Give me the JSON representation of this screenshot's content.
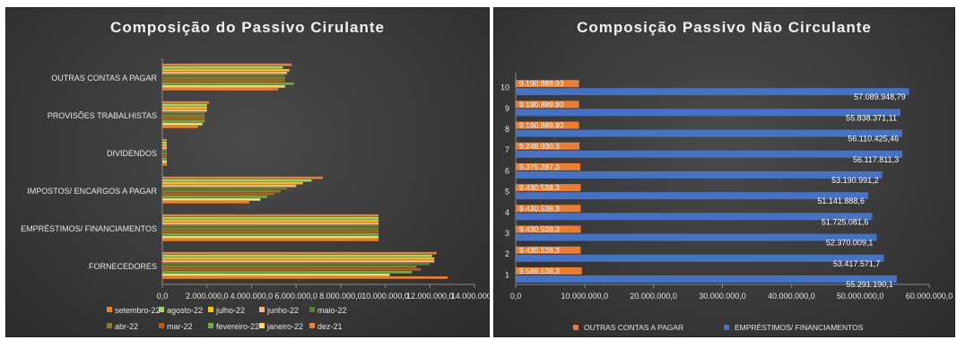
{
  "chart_data": [
    {
      "type": "bar",
      "orientation": "horizontal",
      "title": "Composição do Passivo Cirulante",
      "categories": [
        "OUTRAS CONTAS A PAGAR",
        "PROVISÕES TRABALHISTAS",
        "DIVIDENDOS",
        "IMPOSTOS/ ENCARGOS A PAGAR",
        "EMPRÉSTIMOS/ FINANCIAMENTOS",
        "FORNECEDORES"
      ],
      "xlim": [
        0,
        14000000
      ],
      "xticks": [
        "0,0",
        "2.000.000,0",
        "4.000.000,0",
        "6.000.000,0",
        "8.000.000,0",
        "10.000.000,0",
        "12.000.000,0",
        "14.000.000,0"
      ],
      "legend_position": "bottom",
      "grid": false,
      "series": [
        {
          "name": "setembro-22",
          "color": "#ED7D31",
          "values": [
            5800000,
            2100000,
            200000,
            7200000,
            9700000,
            12300000
          ]
        },
        {
          "name": "agosto-22",
          "color": "#A5D46A",
          "values": [
            5400000,
            2000000,
            200000,
            6700000,
            9700000,
            12100000
          ]
        },
        {
          "name": "julho-22",
          "color": "#FFC000",
          "values": [
            5700000,
            2000000,
            200000,
            6300000,
            9700000,
            12200000
          ]
        },
        {
          "name": "junho-22",
          "color": "#F4B183",
          "values": [
            5600000,
            2000000,
            200000,
            6000000,
            9700000,
            12200000
          ]
        },
        {
          "name": "maio-22",
          "color": "#548235",
          "values": [
            5500000,
            1900000,
            200000,
            5600000,
            9700000,
            12000000
          ]
        },
        {
          "name": "abr-22",
          "color": "#8C7A30",
          "values": [
            5500000,
            1900000,
            200000,
            5300000,
            9700000,
            11400000
          ]
        },
        {
          "name": "mar-22",
          "color": "#C55A11",
          "values": [
            5500000,
            1900000,
            200000,
            5000000,
            9700000,
            11600000
          ]
        },
        {
          "name": "fevereiro-22",
          "color": "#70AD47",
          "values": [
            5900000,
            1900000,
            200000,
            4700000,
            9700000,
            11200000
          ]
        },
        {
          "name": "janeiro-22",
          "color": "#FFD966",
          "values": [
            5500000,
            1800000,
            200000,
            4400000,
            9700000,
            10200000
          ]
        },
        {
          "name": "dez-21",
          "color": "#F4802A",
          "values": [
            5200000,
            1600000,
            200000,
            3900000,
            9700000,
            12800000
          ]
        }
      ]
    },
    {
      "type": "bar",
      "orientation": "horizontal",
      "title": "Composição Passivo Não Circulante",
      "categories": [
        "1",
        "2",
        "3",
        "4",
        "5",
        "6",
        "7",
        "8",
        "9",
        "10"
      ],
      "xlim": [
        0,
        60000000
      ],
      "xticks": [
        "0,0",
        "10.000.000,0",
        "20.000.000,0",
        "30.000.000,0",
        "40.000.000,0",
        "50.000.000,0",
        "60.000.000,0"
      ],
      "legend_position": "bottom",
      "grid": false,
      "series": [
        {
          "name": "OUTRAS CONTAS A PAGAR",
          "color": "#ED7D31",
          "values": [
            9589538.3,
            9430538.3,
            9430538.3,
            9430538.3,
            9430538.3,
            9375287.3,
            9248930.3,
            9190889.93,
            9190889.93,
            9190889.93
          ],
          "labels": [
            "9.589.538,3",
            "9.430.538,3",
            "9.430.538,3",
            "9.430.538,3",
            "9.430.538,3",
            "9.375.287,3",
            "9.248.930,3",
            "9.190.889,93",
            "9.190.889,93",
            "9.190.889,93"
          ]
        },
        {
          "name": "EMPRÉSTIMOS/ FINANCIAMENTOS",
          "color": "#4472C4",
          "values": [
            55291190.1,
            53417571.7,
            52370009.1,
            51725081.6,
            51141888.6,
            53190991.2,
            56117811.3,
            56110425.46,
            55838371.11,
            57089948.79
          ],
          "labels": [
            "55.291.190,1",
            "53.417.571,7",
            "52.370.009,1",
            "51.725.081,6",
            "51.141.888,6",
            "53.190.991,2",
            "56.117.811,3",
            "56.110.425,46",
            "55.838.371,11",
            "57.089.948,79"
          ]
        }
      ]
    }
  ]
}
